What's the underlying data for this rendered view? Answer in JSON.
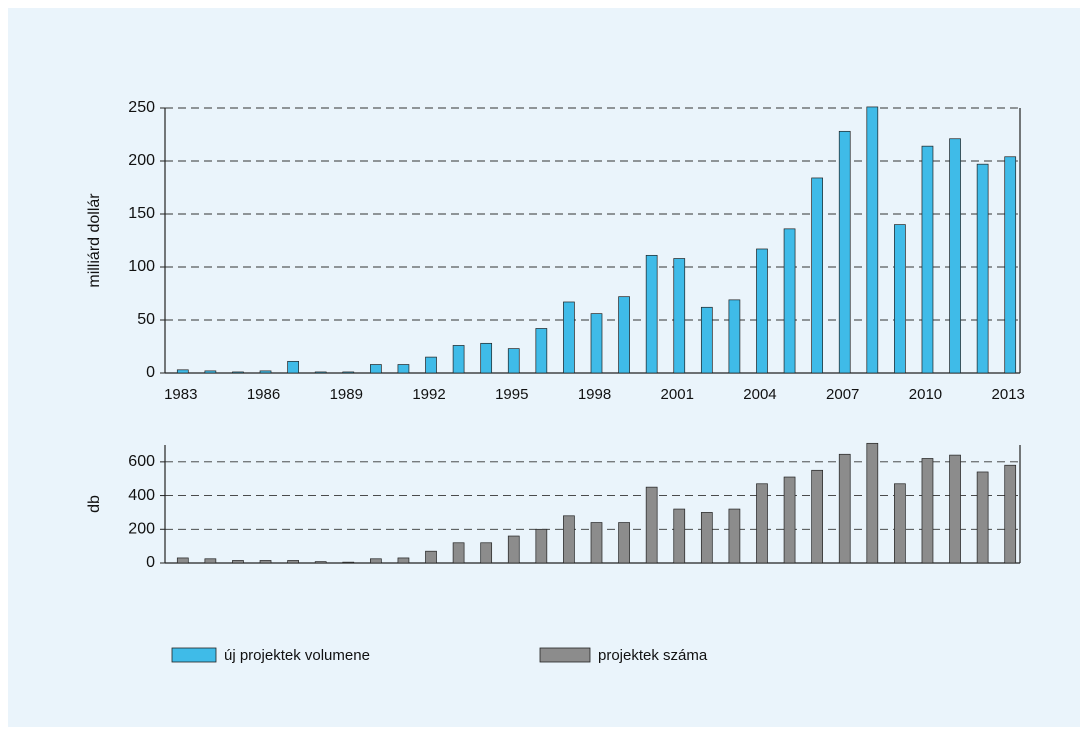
{
  "chart_data": [
    {
      "type": "bar",
      "y_label": "milliárd dollár",
      "categories": [
        "1983",
        null,
        null,
        "1986",
        null,
        null,
        "1989",
        null,
        null,
        "1992",
        null,
        null,
        "1995",
        null,
        null,
        "1998",
        null,
        null,
        "2001",
        null,
        null,
        "2004",
        null,
        null,
        "2007",
        null,
        null,
        "2010",
        null,
        null,
        "2013"
      ],
      "series": [
        {
          "name": "új projektek volumene",
          "color": "#3fbbe8",
          "values": [
            3,
            2,
            1,
            2,
            11,
            1,
            1,
            8,
            8,
            15,
            26,
            28,
            23,
            42,
            67,
            56,
            72,
            111,
            108,
            62,
            69,
            117,
            136,
            184,
            228,
            251,
            140,
            214,
            221,
            197,
            204
          ]
        }
      ],
      "ylim": [
        0,
        250
      ],
      "yticks": [
        0,
        50,
        100,
        150,
        200,
        250
      ],
      "grid": true,
      "legend": "bottom"
    },
    {
      "type": "bar",
      "y_label": "db",
      "series": [
        {
          "name": "projektek száma",
          "color": "#8c8c8c",
          "values": [
            30,
            25,
            15,
            15,
            15,
            8,
            5,
            25,
            30,
            70,
            120,
            120,
            160,
            200,
            280,
            240,
            240,
            450,
            320,
            300,
            320,
            470,
            510,
            550,
            645,
            710,
            470,
            620,
            640,
            540,
            580
          ]
        }
      ],
      "ylim": [
        0,
        700
      ],
      "yticks": [
        0,
        200,
        400,
        600
      ],
      "grid": true,
      "legend": "bottom"
    }
  ]
}
